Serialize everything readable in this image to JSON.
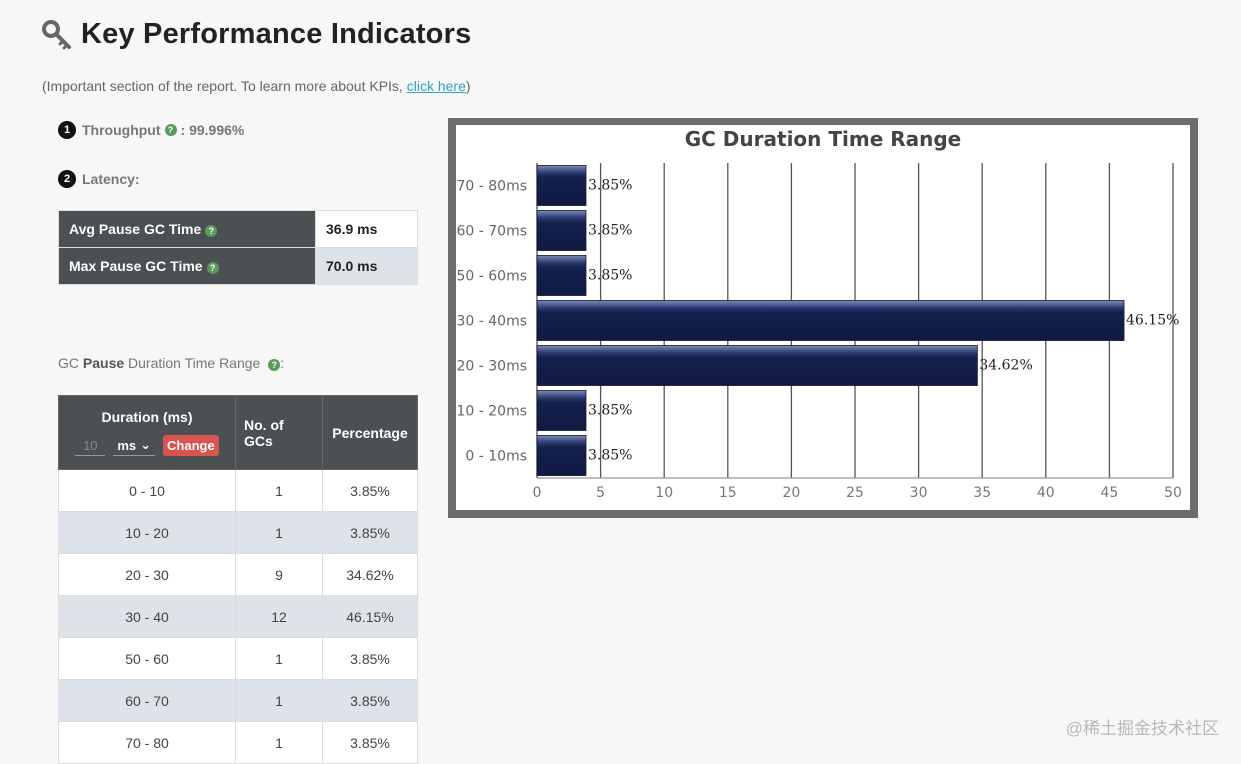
{
  "header": {
    "title": "Key Performance Indicators",
    "intro_prefix": "(Important section of the report. To learn more about KPIs, ",
    "intro_link": "click here",
    "intro_suffix": ")"
  },
  "throughput": {
    "badge": "1",
    "label": "Throughput",
    "value": ": 99.996%"
  },
  "latency": {
    "badge": "2",
    "label": "Latency:",
    "rows": [
      {
        "label": "Avg Pause GC Time",
        "value": "36.9 ms"
      },
      {
        "label": "Max Pause GC Time",
        "value": "70.0 ms"
      }
    ]
  },
  "pause_section": {
    "prefix": "GC ",
    "bold": "Pause",
    "suffix": " Duration Time Range",
    "colon": ":"
  },
  "duration_table": {
    "headers": {
      "duration": "Duration (ms)",
      "gcs": "No. of GCs",
      "percentage": "Percentage"
    },
    "controls": {
      "input_value": "10",
      "unit": "ms",
      "change_label": "Change"
    },
    "rows": [
      {
        "range": "0 - 10",
        "count": "1",
        "pct": "3.85%"
      },
      {
        "range": "10 - 20",
        "count": "1",
        "pct": "3.85%"
      },
      {
        "range": "20 - 30",
        "count": "9",
        "pct": "34.62%"
      },
      {
        "range": "30 - 40",
        "count": "12",
        "pct": "46.15%"
      },
      {
        "range": "50 - 60",
        "count": "1",
        "pct": "3.85%"
      },
      {
        "range": "60 - 70",
        "count": "1",
        "pct": "3.85%"
      },
      {
        "range": "70 - 80",
        "count": "1",
        "pct": "3.85%"
      }
    ]
  },
  "chart_data": {
    "type": "bar",
    "orientation": "horizontal",
    "title": "GC Duration Time Range",
    "categories": [
      "70 - 80ms",
      "60 - 70ms",
      "50 - 60ms",
      "30 - 40ms",
      "20 - 30ms",
      "10 - 20ms",
      "0 - 10ms"
    ],
    "values": [
      3.85,
      3.85,
      3.85,
      46.15,
      34.62,
      3.85,
      3.85
    ],
    "data_labels": [
      "3.85%",
      "3.85%",
      "3.85%",
      "46.15%",
      "34.62%",
      "3.85%",
      "3.85%"
    ],
    "xticks": [
      0,
      5,
      10,
      15,
      20,
      25,
      30,
      35,
      40,
      45,
      50
    ],
    "xlim": [
      0,
      50
    ],
    "grid": true,
    "bar_color": "#14204e"
  },
  "watermark": "@稀土掘金技术社区",
  "colors": {
    "table_header": "#4b5052",
    "link": "#2aa3c9",
    "change_button": "#d9534f",
    "help_icon": "#5a9a5a"
  }
}
